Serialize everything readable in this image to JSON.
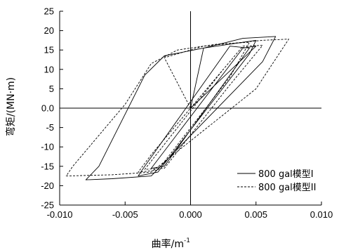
{
  "chart_data": {
    "type": "line",
    "title": "",
    "xlabel": "曲率/m",
    "xlabel_superscript": "-1",
    "ylabel": "弯矩/(MN·m)",
    "xlim": [
      -0.01,
      0.01
    ],
    "ylim": [
      -25,
      25
    ],
    "xticks": [
      -0.01,
      -0.005,
      0.0,
      0.005,
      0.01
    ],
    "xtick_labels": [
      "-0.010",
      "-0.005",
      "0.000",
      "0.005",
      "0.010"
    ],
    "yticks": [
      25,
      20,
      15,
      10,
      5,
      0,
      -5,
      -10,
      -15,
      -20,
      -25
    ],
    "ytick_labels": [
      "25",
      "20",
      "15",
      "10",
      "5",
      "0.0",
      "-5",
      "-10",
      "-15",
      "-20",
      "-25"
    ],
    "grid": false,
    "legend_position": "lower-right",
    "zero_lines": true,
    "series": [
      {
        "name": "800 gal模型I",
        "style": "solid",
        "color": "#000000",
        "points": [
          [
            0.0,
            0.0
          ],
          [
            0.001,
            15.5
          ],
          [
            0.004,
            18.0
          ],
          [
            0.0065,
            18.5
          ],
          [
            0.0055,
            12.0
          ],
          [
            -0.003,
            -17.5
          ],
          [
            -0.006,
            -18.2
          ],
          [
            -0.008,
            -18.5
          ],
          [
            -0.007,
            -15.0
          ],
          [
            -0.0035,
            8.5
          ],
          [
            -0.002,
            13.5
          ],
          [
            0.001,
            15.5
          ],
          [
            0.005,
            17.5
          ],
          [
            0.0045,
            14.0
          ],
          [
            -0.0025,
            -16.5
          ],
          [
            -0.004,
            -17.5
          ],
          [
            -0.0035,
            -15.0
          ],
          [
            0.003,
            16.0
          ],
          [
            0.0045,
            15.5
          ],
          [
            -0.002,
            -15.0
          ],
          [
            -0.003,
            -15.5
          ],
          [
            0.004,
            15.5
          ],
          [
            0.005,
            16.0
          ],
          [
            0.0,
            0.0
          ]
        ]
      },
      {
        "name": "800 gal模型II",
        "style": "dashed",
        "color": "#000000",
        "points": [
          [
            0.0,
            0.0
          ],
          [
            -0.002,
            13.0
          ],
          [
            0.001,
            16.0
          ],
          [
            0.0055,
            17.5
          ],
          [
            0.0075,
            17.8
          ],
          [
            0.005,
            5.0
          ],
          [
            -0.003,
            -16.5
          ],
          [
            -0.006,
            -17.2
          ],
          [
            -0.0095,
            -17.5
          ],
          [
            -0.009,
            -15.0
          ],
          [
            -0.005,
            1.0
          ],
          [
            -0.003,
            11.5
          ],
          [
            -0.001,
            15.0
          ],
          [
            0.002,
            16.5
          ],
          [
            0.0045,
            17.0
          ],
          [
            0.003,
            8.0
          ],
          [
            -0.0025,
            -16.0
          ],
          [
            -0.004,
            -16.5
          ],
          [
            -0.003,
            -12.0
          ],
          [
            0.004,
            16.0
          ],
          [
            0.0055,
            16.2
          ],
          [
            0.003,
            6.0
          ],
          [
            -0.002,
            -15.5
          ],
          [
            -0.0035,
            -15.8
          ],
          [
            0.0025,
            10.0
          ],
          [
            0.0,
            0.0
          ]
        ]
      }
    ]
  }
}
